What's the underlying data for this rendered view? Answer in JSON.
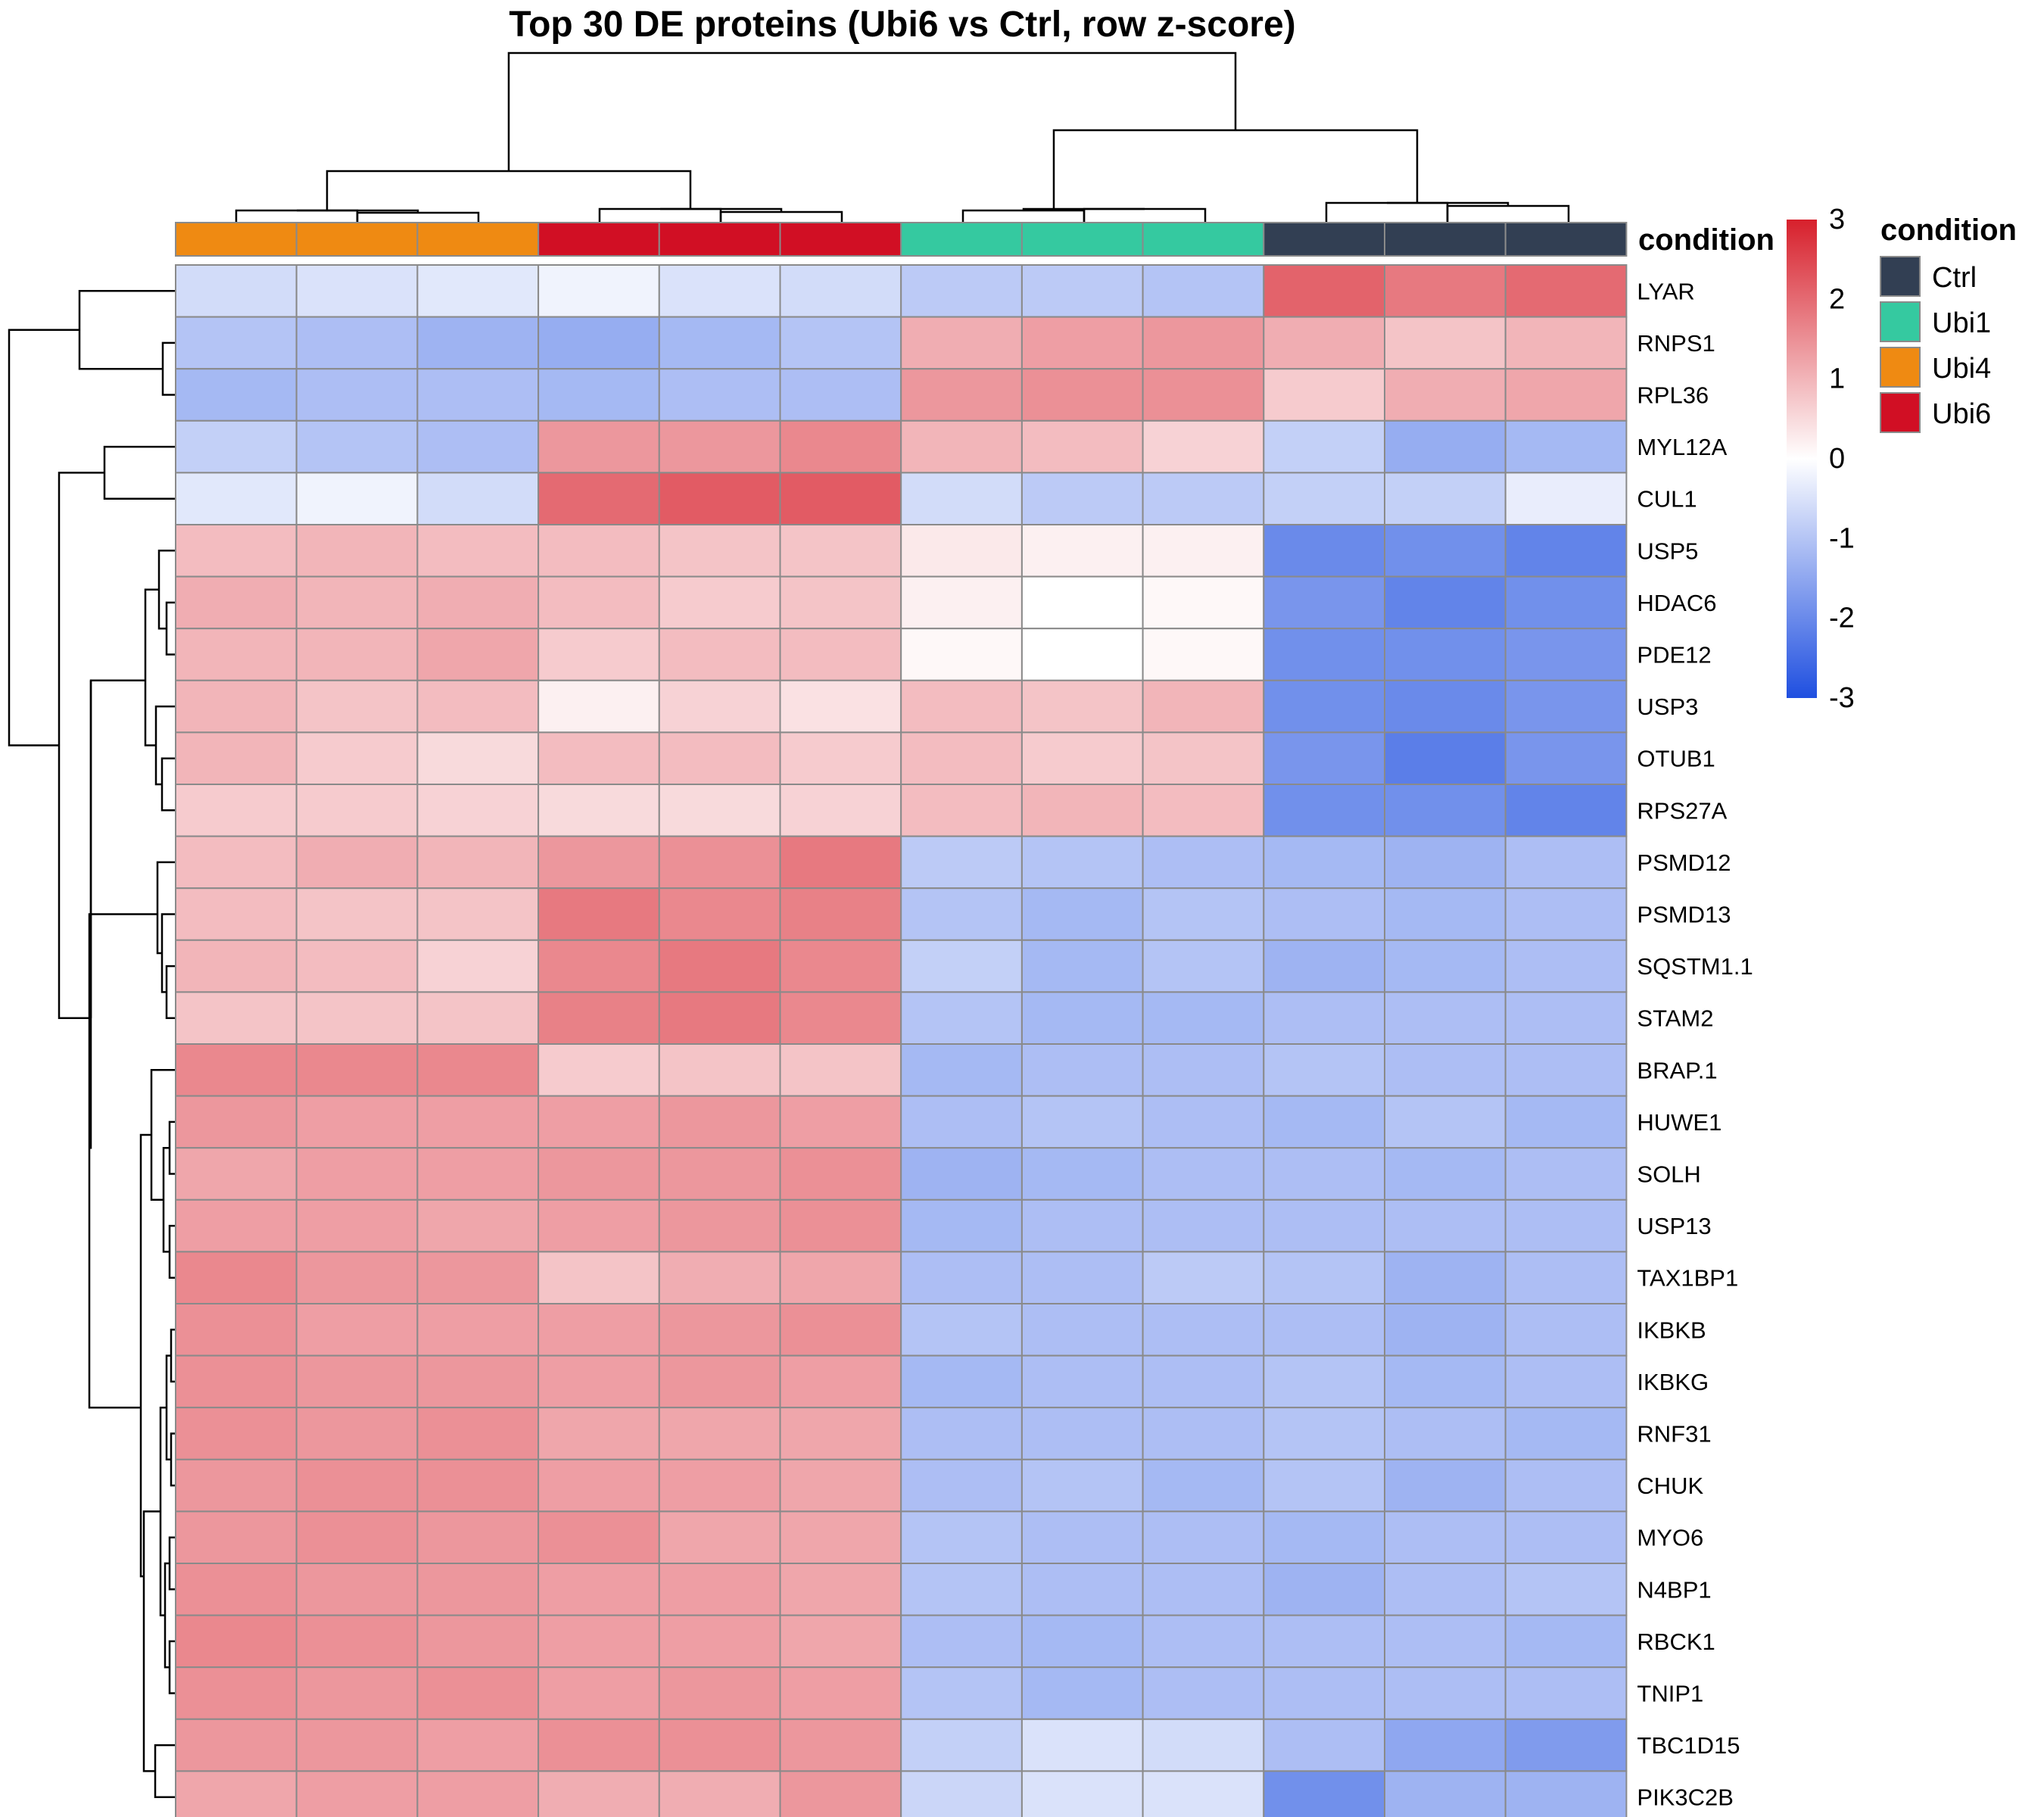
{
  "chart_data": {
    "type": "heatmap",
    "title": "Top 30 DE proteins (Ubi6 vs Ctrl, row z-score)",
    "annotation_label": "condition",
    "column_conditions": [
      "Ubi4",
      "Ubi4",
      "Ubi4",
      "Ubi6",
      "Ubi6",
      "Ubi6",
      "Ubi1",
      "Ubi1",
      "Ubi1",
      "Ctrl",
      "Ctrl",
      "Ctrl"
    ],
    "rows": [
      "LYAR",
      "RNPS1",
      "RPL36",
      "MYL12A",
      "CUL1",
      "USP5",
      "HDAC6",
      "PDE12",
      "USP3",
      "OTUB1",
      "RPS27A",
      "PSMD12",
      "PSMD13",
      "SQSTM1.1",
      "STAM2",
      "BRAP.1",
      "HUWE1",
      "SOLH",
      "USP13",
      "TAX1BP1",
      "IKBKB",
      "IKBKG",
      "RNF31",
      "CHUK",
      "MYO6",
      "N4BP1",
      "RBCK1",
      "TNIP1",
      "TBC1D15",
      "PIK3C2B"
    ],
    "values": [
      [
        -0.6,
        -0.5,
        -0.4,
        -0.2,
        -0.5,
        -0.6,
        -0.9,
        -0.9,
        -1.0,
        2.1,
        1.8,
        2.0
      ],
      [
        -1.0,
        -1.1,
        -1.3,
        -1.4,
        -1.2,
        -1.0,
        1.1,
        1.3,
        1.4,
        1.1,
        0.8,
        1.0
      ],
      [
        -1.2,
        -1.1,
        -1.1,
        -1.2,
        -1.1,
        -1.1,
        1.4,
        1.5,
        1.5,
        0.7,
        1.1,
        1.2
      ],
      [
        -0.8,
        -1.0,
        -1.1,
        1.4,
        1.4,
        1.6,
        1.0,
        0.9,
        0.6,
        -0.8,
        -1.4,
        -1.2
      ],
      [
        -0.4,
        -0.2,
        -0.6,
        2.0,
        2.2,
        2.2,
        -0.6,
        -0.9,
        -0.9,
        -0.8,
        -0.8,
        -0.3
      ],
      [
        0.9,
        1.0,
        0.9,
        0.9,
        0.8,
        0.8,
        0.3,
        0.2,
        0.2,
        -2.0,
        -1.9,
        -2.1
      ],
      [
        1.1,
        1.0,
        1.1,
        0.9,
        0.7,
        0.8,
        0.2,
        0.0,
        0.1,
        -1.8,
        -2.1,
        -1.9
      ],
      [
        1.0,
        1.0,
        1.2,
        0.7,
        0.9,
        0.9,
        0.1,
        0.0,
        0.1,
        -1.9,
        -1.9,
        -1.8
      ],
      [
        1.0,
        0.8,
        0.9,
        0.2,
        0.6,
        0.4,
        0.9,
        0.8,
        1.0,
        -1.9,
        -2.0,
        -1.8
      ],
      [
        1.0,
        0.7,
        0.5,
        0.9,
        0.9,
        0.7,
        0.9,
        0.7,
        0.8,
        -1.8,
        -2.2,
        -1.8
      ],
      [
        0.7,
        0.7,
        0.6,
        0.5,
        0.5,
        0.6,
        0.9,
        1.0,
        0.9,
        -1.9,
        -1.9,
        -2.1
      ],
      [
        0.9,
        1.1,
        1.0,
        1.4,
        1.5,
        1.8,
        -0.9,
        -1.0,
        -1.1,
        -1.2,
        -1.3,
        -1.1
      ],
      [
        0.9,
        0.8,
        0.8,
        1.8,
        1.6,
        1.7,
        -1.0,
        -1.2,
        -1.0,
        -1.1,
        -1.2,
        -1.1
      ],
      [
        1.0,
        0.9,
        0.6,
        1.6,
        1.8,
        1.6,
        -0.8,
        -1.2,
        -1.0,
        -1.3,
        -1.2,
        -1.1
      ],
      [
        0.8,
        0.8,
        0.8,
        1.7,
        1.8,
        1.6,
        -1.0,
        -1.2,
        -1.2,
        -1.1,
        -1.1,
        -1.1
      ],
      [
        1.6,
        1.6,
        1.6,
        0.7,
        0.8,
        0.8,
        -1.2,
        -1.1,
        -1.1,
        -1.0,
        -1.1,
        -1.1
      ],
      [
        1.4,
        1.3,
        1.3,
        1.3,
        1.4,
        1.3,
        -1.1,
        -1.0,
        -1.1,
        -1.2,
        -1.0,
        -1.2
      ],
      [
        1.2,
        1.3,
        1.3,
        1.4,
        1.4,
        1.5,
        -1.3,
        -1.2,
        -1.1,
        -1.1,
        -1.2,
        -1.1
      ],
      [
        1.3,
        1.3,
        1.2,
        1.3,
        1.4,
        1.5,
        -1.2,
        -1.1,
        -1.1,
        -1.1,
        -1.1,
        -1.1
      ],
      [
        1.6,
        1.4,
        1.4,
        0.8,
        1.1,
        1.2,
        -1.1,
        -1.1,
        -0.9,
        -1.0,
        -1.3,
        -1.1
      ],
      [
        1.5,
        1.3,
        1.3,
        1.3,
        1.4,
        1.5,
        -1.0,
        -1.1,
        -1.1,
        -1.1,
        -1.3,
        -1.1
      ],
      [
        1.5,
        1.4,
        1.4,
        1.3,
        1.4,
        1.3,
        -1.2,
        -1.1,
        -1.1,
        -1.0,
        -1.2,
        -1.1
      ],
      [
        1.5,
        1.4,
        1.5,
        1.2,
        1.2,
        1.2,
        -1.1,
        -1.1,
        -1.1,
        -1.0,
        -1.1,
        -1.2
      ],
      [
        1.4,
        1.5,
        1.5,
        1.3,
        1.3,
        1.2,
        -1.1,
        -1.0,
        -1.2,
        -1.0,
        -1.3,
        -1.1
      ],
      [
        1.4,
        1.5,
        1.4,
        1.5,
        1.2,
        1.2,
        -1.0,
        -1.1,
        -1.1,
        -1.2,
        -1.1,
        -1.1
      ],
      [
        1.5,
        1.4,
        1.4,
        1.3,
        1.3,
        1.2,
        -1.0,
        -1.1,
        -1.1,
        -1.3,
        -1.1,
        -1.0
      ],
      [
        1.6,
        1.5,
        1.4,
        1.3,
        1.3,
        1.2,
        -1.1,
        -1.2,
        -1.1,
        -1.1,
        -1.1,
        -1.2
      ],
      [
        1.5,
        1.4,
        1.5,
        1.3,
        1.4,
        1.3,
        -1.0,
        -1.2,
        -1.1,
        -1.1,
        -1.1,
        -1.1
      ],
      [
        1.4,
        1.4,
        1.3,
        1.5,
        1.5,
        1.4,
        -0.8,
        -0.5,
        -0.6,
        -1.1,
        -1.5,
        -1.7
      ],
      [
        1.2,
        1.3,
        1.3,
        1.1,
        1.1,
        1.4,
        -0.7,
        -0.5,
        -0.5,
        -1.9,
        -1.3,
        -1.3
      ]
    ],
    "color_scale": {
      "min": -3,
      "max": 3,
      "low": "#1f4fe0",
      "mid": "#ffffff",
      "high": "#d7202c",
      "ticks": [
        "3",
        "2",
        "1",
        "0",
        "-1",
        "-2",
        "-3"
      ]
    },
    "legend": {
      "title": "condition",
      "position": "right",
      "items": [
        {
          "label": "Ctrl",
          "color": "#323f53"
        },
        {
          "label": "Ubi1",
          "color": "#35c9a0"
        },
        {
          "label": "Ubi4",
          "color": "#ef8a12"
        },
        {
          "label": "Ubi6",
          "color": "#d10f24"
        }
      ]
    }
  }
}
